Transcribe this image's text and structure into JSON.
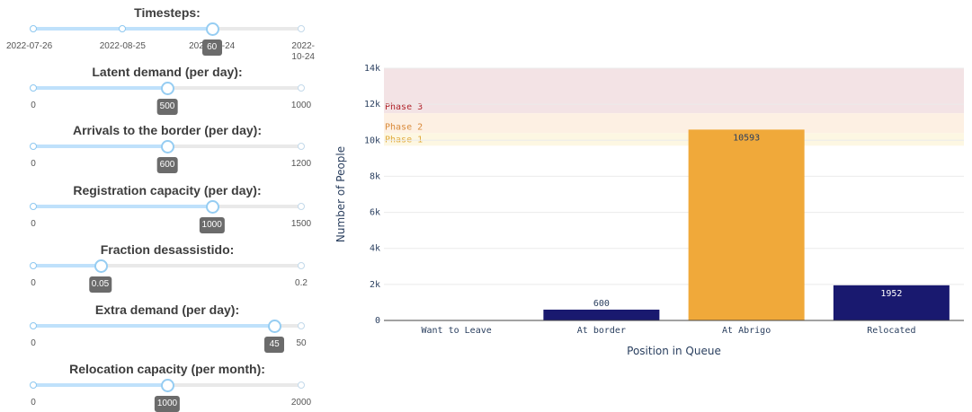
{
  "sliders": [
    {
      "title": "Timesteps:",
      "min": 0,
      "max": 90,
      "value": 60,
      "tooltip": "60",
      "marks": [
        {
          "at": 0,
          "label": "2022-07-26"
        },
        {
          "at": 30,
          "label": "2022-08-25"
        },
        {
          "at": 60,
          "label": "2022-09-24"
        },
        {
          "at": 90,
          "label": "2022-\n10-24"
        }
      ]
    },
    {
      "title": "Latent demand (per day):",
      "min": 0,
      "max": 1000,
      "value": 500,
      "tooltip": "500",
      "marks": [
        {
          "at": 0,
          "label": "0"
        },
        {
          "at": 1000,
          "label": "1000"
        }
      ]
    },
    {
      "title": "Arrivals to the border (per day):",
      "min": 0,
      "max": 1200,
      "value": 600,
      "tooltip": "600",
      "marks": [
        {
          "at": 0,
          "label": "0"
        },
        {
          "at": 1200,
          "label": "1200"
        }
      ]
    },
    {
      "title": "Registration capacity (per day):",
      "min": 0,
      "max": 1500,
      "value": 1000,
      "tooltip": "1000",
      "marks": [
        {
          "at": 0,
          "label": "0"
        },
        {
          "at": 1500,
          "label": "1500"
        }
      ]
    },
    {
      "title": "Fraction desassistido:",
      "min": 0,
      "max": 0.2,
      "value": 0.05,
      "tooltip": "0.05",
      "marks": [
        {
          "at": 0,
          "label": "0"
        },
        {
          "at": 0.2,
          "label": "0.2"
        }
      ]
    },
    {
      "title": "Extra demand (per day):",
      "min": 0,
      "max": 50,
      "value": 45,
      "tooltip": "45",
      "marks": [
        {
          "at": 0,
          "label": "0"
        },
        {
          "at": 50,
          "label": "50"
        }
      ]
    },
    {
      "title": "Relocation capacity (per month):",
      "min": 0,
      "max": 2000,
      "value": 1000,
      "tooltip": "1000",
      "marks": [
        {
          "at": 0,
          "label": "0"
        },
        {
          "at": 2000,
          "label": "2000"
        }
      ]
    }
  ],
  "chart_data": {
    "type": "bar",
    "categories": [
      "Want to Leave",
      "At border",
      "At Abrigo",
      "Relocated"
    ],
    "values": [
      0,
      600,
      10593,
      1952
    ],
    "data_labels": [
      "",
      "600",
      "10593",
      "1952"
    ],
    "bar_colors": [
      "#19196f",
      "#19196f",
      "#f0a93a",
      "#19196f"
    ],
    "xlabel": "Position in Queue",
    "ylabel": "Number of People",
    "ylim": [
      0,
      14000
    ],
    "yticks": [
      0,
      2000,
      4000,
      6000,
      8000,
      10000,
      12000,
      14000
    ],
    "ytick_labels": [
      "0",
      "2k",
      "4k",
      "6k",
      "8k",
      "10k",
      "12k",
      "14k"
    ],
    "phases": [
      {
        "label": "Phase 3",
        "from": 11500,
        "to": 14000,
        "fill": "#f3e3e5",
        "text_color": "#b0242b"
      },
      {
        "label": "Phase 2",
        "from": 10400,
        "to": 11500,
        "fill": "#fdf0e3",
        "text_color": "#d98a3a"
      },
      {
        "label": "Phase 1",
        "from": 9700,
        "to": 10400,
        "fill": "#fdf7e2",
        "text_color": "#e0a93a"
      }
    ]
  }
}
